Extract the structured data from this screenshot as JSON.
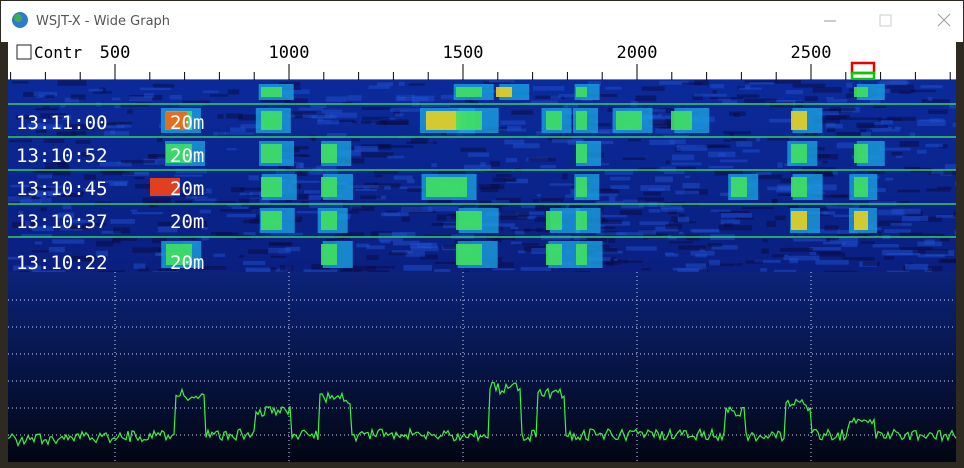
{
  "window": {
    "title": "WSJT-X - Wide Graph"
  },
  "controls": {
    "label": "Contr"
  },
  "frequency_scale": {
    "labels": [
      500,
      1000,
      1500,
      2000,
      2500
    ]
  },
  "waterfall": {
    "rows": [
      {
        "time": "13:11:00",
        "band": "20m"
      },
      {
        "time": "13:10:52",
        "band": "20m"
      },
      {
        "time": "13:10:45",
        "band": "20m"
      },
      {
        "time": "13:10:37",
        "band": "20m"
      },
      {
        "time": "13:10:22",
        "band": "20m"
      }
    ]
  }
}
